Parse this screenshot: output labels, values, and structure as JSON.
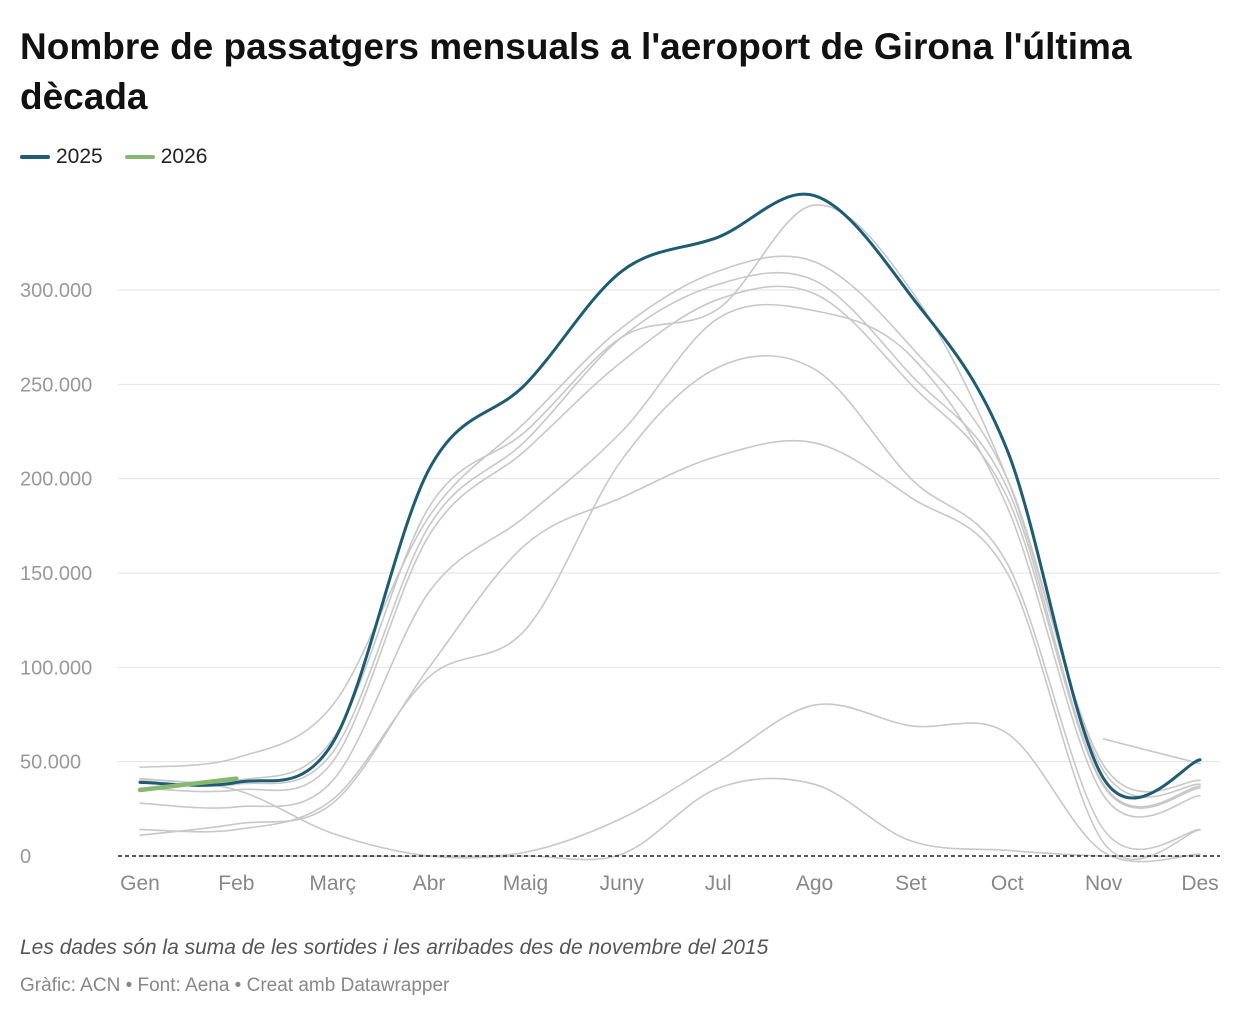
{
  "chart_data": {
    "type": "line",
    "title": "Nombre de passatgers mensuals a l'aeroport de Girona l'última dècada",
    "categories": [
      "Gen",
      "Feb",
      "Març",
      "Abr",
      "Maig",
      "Juny",
      "Jul",
      "Ago",
      "Set",
      "Oct",
      "Nov",
      "Des"
    ],
    "ylim": [
      0,
      350000
    ],
    "yticks": [
      0,
      50000,
      100000,
      150000,
      200000,
      250000,
      300000
    ],
    "ytick_labels": [
      "0",
      "50.000",
      "100.000",
      "150.000",
      "200.000",
      "250.000",
      "300.000"
    ],
    "grid": true,
    "legend": "top-left",
    "series": [
      {
        "name": "2025",
        "color": "#1d5c74",
        "highlight": true,
        "values": [
          39000,
          39000,
          60000,
          205000,
          250000,
          310000,
          328000,
          350000,
          297000,
          215000,
          41000,
          51000
        ]
      },
      {
        "name": "2026",
        "color": "#86b86f",
        "highlight": true,
        "values": [
          35000,
          41000,
          null,
          null,
          null,
          null,
          null,
          null,
          null,
          null,
          null,
          null
        ]
      },
      {
        "color": "#c8c8c8",
        "values": [
          41000,
          40000,
          62000,
          185000,
          225000,
          275000,
          290000,
          345000,
          300000,
          200000,
          48000,
          40000
        ]
      },
      {
        "color": "#c8c8c8",
        "values": [
          47000,
          52000,
          80000,
          180000,
          230000,
          280000,
          310000,
          315000,
          270000,
          200000,
          45000,
          38000
        ]
      },
      {
        "color": "#c8c8c8",
        "values": [
          40000,
          38000,
          55000,
          175000,
          220000,
          275000,
          303000,
          305000,
          255000,
          195000,
          38000,
          37000
        ]
      },
      {
        "color": "#c8c8c8",
        "values": [
          36000,
          35000,
          50000,
          170000,
          215000,
          262000,
          295000,
          298000,
          250000,
          190000,
          37000,
          36000
        ]
      },
      {
        "color": "#c8c8c8",
        "values": [
          28000,
          26000,
          40000,
          140000,
          180000,
          225000,
          285000,
          289000,
          265000,
          185000,
          32000,
          32000
        ]
      },
      {
        "color": "#c8c8c8",
        "values": [
          14000,
          14000,
          30000,
          95000,
          120000,
          210000,
          259000,
          258000,
          200000,
          155000,
          14000,
          14000
        ]
      },
      {
        "color": "#c8c8c8",
        "values": [
          11000,
          17000,
          28000,
          100000,
          165000,
          190000,
          212000,
          219000,
          190000,
          150000,
          7000,
          14000
        ]
      },
      {
        "color": "#c8c8c8",
        "values": [
          41000,
          35000,
          12000,
          0,
          0,
          1000,
          36000,
          38000,
          8000,
          3000,
          0,
          0
        ]
      },
      {
        "color": "#c8c8c8",
        "values": [
          0,
          0,
          0,
          0,
          2000,
          20000,
          50000,
          80000,
          69000,
          65000,
          2000,
          1000
        ]
      },
      {
        "color": "#c8c8c8",
        "values": [
          null,
          null,
          null,
          null,
          null,
          null,
          null,
          null,
          null,
          null,
          62000,
          49000
        ]
      }
    ]
  },
  "note": "Les dades són la suma de les sortides i les arribades des de novembre del 2015",
  "source": "Gràfic: ACN • Font: Aena • Creat amb Datawrapper"
}
